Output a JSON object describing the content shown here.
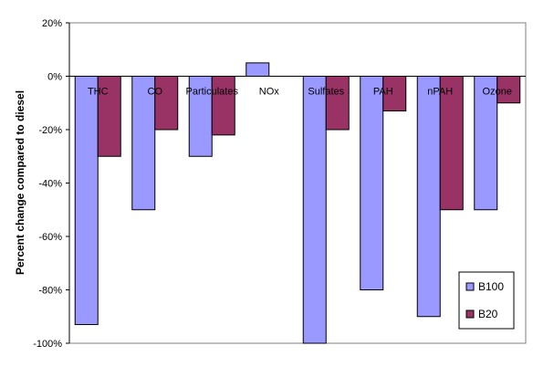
{
  "chart_data": {
    "type": "bar",
    "title": "",
    "xlabel": "",
    "ylabel": "Percent change compared to diesel",
    "ylim": [
      -100,
      20
    ],
    "yticks": [
      20,
      0,
      -20,
      -40,
      -60,
      -80,
      -100
    ],
    "ytick_labels": [
      "20%",
      "0%",
      "-20%",
      "-40%",
      "-60%",
      "-80%",
      "-100%"
    ],
    "categories": [
      "THC",
      "CO",
      "Particulates",
      "NOx",
      "Sulfates",
      "PAH",
      "nPAH",
      "Ozone"
    ],
    "series": [
      {
        "name": "B100",
        "values": [
          -93,
          -50,
          -30,
          5,
          -100,
          -80,
          -90,
          -50
        ],
        "color": "#9999ff"
      },
      {
        "name": "B20",
        "values": [
          -30,
          -20,
          -22,
          0,
          -20,
          -13,
          -50,
          -10
        ],
        "color": "#993366"
      }
    ],
    "grid": false,
    "legend_position": "bottom-right",
    "plot_background": "#ffffff",
    "outline_color": "#808080"
  }
}
